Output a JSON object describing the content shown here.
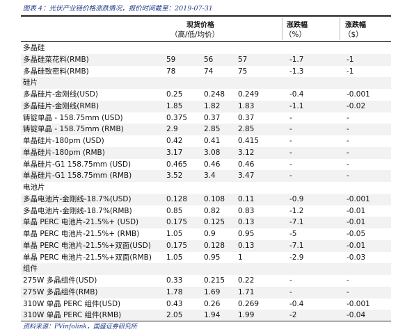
{
  "caption": "图表 4：光伏产业链价格涨跌情况，报价时间截至：2019-07-31",
  "header": {
    "spot_price": "现货价格",
    "spot_units": "（高/低/均价）",
    "change_pct": "涨跌幅",
    "change_pct_unit": "（%）",
    "change_usd": "涨跌幅",
    "change_usd_unit": "（$）"
  },
  "rows": [
    {
      "type": "section",
      "name": "多晶硅"
    },
    {
      "type": "item",
      "name": "多晶硅菜花料(RMB)",
      "high": "59",
      "low": "56",
      "avg": "57",
      "pct": "-1.7",
      "usd": "-1"
    },
    {
      "type": "item",
      "name": "多晶硅致密料(RMB)",
      "high": "78",
      "low": "74",
      "avg": "75",
      "pct": "-1.3",
      "usd": "-1"
    },
    {
      "type": "section",
      "name": "硅片"
    },
    {
      "type": "item",
      "name": "多晶硅片-金刚线(USD)",
      "high": "0.25",
      "low": "0.248",
      "avg": "0.249",
      "pct": "-0.4",
      "usd": "-0.001"
    },
    {
      "type": "item",
      "name": "多晶硅片-金刚线(RMB)",
      "high": "1.85",
      "low": "1.82",
      "avg": "1.83",
      "pct": "-1.1",
      "usd": "-0.02"
    },
    {
      "type": "item",
      "name": "铸锭单晶 - 158.75mm (USD)",
      "high": "0.375",
      "low": "0.37",
      "avg": "0.37",
      "pct": "-",
      "usd": "-"
    },
    {
      "type": "item",
      "name": "铸锭单晶 - 158.75mm (RMB)",
      "high": "2.9",
      "low": "2.85",
      "avg": "2.85",
      "pct": "-",
      "usd": "-"
    },
    {
      "type": "item",
      "name": "单晶硅片-180pm (USD)",
      "high": "0.42",
      "low": "0.41",
      "avg": "0.415",
      "pct": "-",
      "usd": "-"
    },
    {
      "type": "item",
      "name": "单晶硅片-180pm (RMB)",
      "high": "3.17",
      "low": "3.08",
      "avg": "3.12",
      "pct": "-",
      "usd": "-"
    },
    {
      "type": "item",
      "name": "单晶硅片-G1 158.75mm (USD)",
      "high": "0.465",
      "low": "0.46",
      "avg": "0.46",
      "pct": "-",
      "usd": "-"
    },
    {
      "type": "item",
      "name": "单晶硅片-G1 158.75mm (RMB)",
      "high": "3.52",
      "low": "3.4",
      "avg": "3.47",
      "pct": "-",
      "usd": "-"
    },
    {
      "type": "section",
      "name": "电池片"
    },
    {
      "type": "item",
      "name": "多晶电池片-金刚线-18.7%(USD)",
      "high": "0.128",
      "low": "0.108",
      "avg": "0.11",
      "pct": "-0.9",
      "usd": "-0.001"
    },
    {
      "type": "item",
      "name": "多晶电池片-金刚线-18.7%(RMB)",
      "high": "0.85",
      "low": "0.82",
      "avg": "0.83",
      "pct": "-1.2",
      "usd": "-0.01"
    },
    {
      "type": "item",
      "name": "单晶 PERC 电池片-21.5%+ (USD)",
      "high": "0.175",
      "low": "0.125",
      "avg": "0.13",
      "pct": "-7.1",
      "usd": "-0.01"
    },
    {
      "type": "item",
      "name": "单晶 PERC 电池片-21.5%+ (RMB)",
      "high": "1.05",
      "low": "0.9",
      "avg": "0.95",
      "pct": "-5",
      "usd": "-0.05"
    },
    {
      "type": "item",
      "name": "单晶 PERC 电池片-21.5%+双面(USD)",
      "high": "0.175",
      "low": "0.128",
      "avg": "0.13",
      "pct": "-7.1",
      "usd": "-0.01"
    },
    {
      "type": "item",
      "name": "单晶 PERC 电池片-21.5%+双面(RMB)",
      "high": "1.05",
      "low": "0.95",
      "avg": "1",
      "pct": "-2.9",
      "usd": "-0.03"
    },
    {
      "type": "section",
      "name": "组件"
    },
    {
      "type": "item",
      "name": "275W 多晶组件(USD)",
      "high": "0.33",
      "low": "0.215",
      "avg": "0.22",
      "pct": "-",
      "usd": "-"
    },
    {
      "type": "item",
      "name": "275W 多晶组件(RMB)",
      "high": "1.78",
      "low": "1.69",
      "avg": "1.71",
      "pct": "-",
      "usd": "-"
    },
    {
      "type": "item",
      "name": "310W 单晶 PERC 组件(USD)",
      "high": "0.43",
      "low": "0.26",
      "avg": "0.269",
      "pct": "-0.4",
      "usd": "-0.001"
    },
    {
      "type": "item",
      "name": "310W 单晶 PERC 组件(RMB)",
      "high": "2.05",
      "low": "1.94",
      "avg": "1.99",
      "pct": "-2",
      "usd": "-0.04"
    }
  ],
  "source": "资料来源：PVinfolink，国盛证券研究所"
}
